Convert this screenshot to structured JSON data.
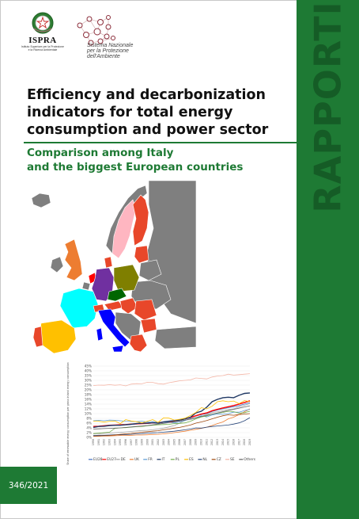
{
  "publisher": {
    "ispra_name": "ISPRA",
    "ispra_sub_line1": "Istituto Superiore per la Protezione",
    "ispra_sub_line2": "e la Ricerca Ambientale",
    "snpa_line1": "Sistema Nazionale",
    "snpa_line2": "per la Protezione",
    "snpa_line3": "dell'Ambiente"
  },
  "series_label": "RAPPORTI",
  "title_lines": [
    "Efficiency and decarbonization",
    "indicators for total energy",
    "consumption and power sector"
  ],
  "subtitle_lines": [
    "Comparison among Italy",
    "and the biggest European countries"
  ],
  "report_number": "346/2021",
  "colors": {
    "brand_green": "#1e7a34",
    "map_grey": "#7f7f7f",
    "italy": "#0000ff",
    "germany": "#7030a0",
    "france": "#00ffff",
    "uk": "#ed7d31",
    "spain": "#ffc000",
    "poland": "#7f7f00",
    "sweden": "#ffb6c1",
    "netherlands": "#ff0000",
    "czech": "#006600",
    "others": "#e8472a"
  },
  "chart_data": {
    "type": "line",
    "ylabel": "Share of renewable energy consumption per gross inland energy consumption",
    "yticks": [
      "0%",
      "2%",
      "4%",
      "6%",
      "8%",
      "10%",
      "12%",
      "14%",
      "16%",
      "18%",
      "20%",
      "25%",
      "30%",
      "35%",
      "40%",
      "45%"
    ],
    "x": [
      1990,
      1991,
      1992,
      1993,
      1994,
      1995,
      1996,
      1997,
      1998,
      1999,
      2000,
      2001,
      2002,
      2003,
      2004,
      2005,
      2006,
      2007,
      2008,
      2009,
      2010,
      2011,
      2012,
      2013,
      2014,
      2015,
      2016,
      2017,
      2018,
      2019
    ],
    "series": [
      {
        "name": "EU28",
        "color": "#4472c4",
        "values": [
          4.5,
          4.6,
          4.8,
          5.0,
          5.1,
          5.2,
          5.3,
          5.5,
          5.6,
          5.7,
          5.8,
          6.0,
          6.1,
          6.3,
          6.5,
          6.8,
          7.2,
          7.7,
          8.3,
          9.0,
          9.6,
          10.0,
          10.9,
          11.5,
          12.0,
          12.5,
          12.9,
          13.4,
          14.0,
          14.6
        ]
      },
      {
        "name": "EU27",
        "color": "#ff0000",
        "values": [
          4.6,
          4.7,
          4.9,
          5.1,
          5.2,
          5.3,
          5.4,
          5.6,
          5.7,
          5.8,
          5.9,
          6.1,
          6.2,
          6.4,
          6.6,
          6.9,
          7.3,
          7.8,
          8.4,
          9.1,
          9.8,
          10.3,
          11.2,
          11.8,
          12.4,
          12.9,
          13.4,
          14.0,
          14.7,
          15.4
        ]
      },
      {
        "name": "DE",
        "color": "#a5a5a5",
        "values": [
          1.5,
          1.6,
          1.7,
          1.8,
          2.0,
          2.1,
          2.3,
          2.5,
          2.7,
          2.9,
          3.0,
          3.2,
          3.5,
          3.9,
          4.4,
          5.0,
          6.0,
          7.2,
          7.5,
          8.1,
          8.9,
          9.6,
          10.5,
          10.8,
          11.2,
          11.8,
          12.0,
          12.8,
          13.5,
          14.2
        ]
      },
      {
        "name": "UK",
        "color": "#ed7d31",
        "values": [
          0.5,
          0.5,
          0.6,
          0.6,
          0.7,
          0.8,
          0.8,
          0.9,
          1.0,
          1.0,
          1.1,
          1.2,
          1.3,
          1.5,
          1.7,
          2.0,
          2.3,
          2.6,
          3.0,
          3.4,
          3.8,
          4.3,
          5.0,
          5.8,
          6.5,
          7.8,
          8.5,
          9.6,
          10.8,
          12.0
        ]
      },
      {
        "name": "FR",
        "color": "#5b9bd5",
        "values": [
          7.0,
          7.2,
          7.0,
          7.3,
          7.2,
          7.0,
          6.8,
          6.7,
          6.6,
          6.8,
          6.5,
          6.7,
          6.2,
          6.3,
          6.4,
          6.1,
          6.5,
          7.1,
          7.9,
          8.3,
          9.1,
          8.6,
          9.4,
          9.9,
          9.7,
          10.0,
          10.6,
          10.6,
          11.3,
          11.8
        ]
      },
      {
        "name": "IT",
        "color": "#1f3864",
        "values": [
          4.2,
          4.6,
          4.7,
          5.0,
          5.1,
          5.1,
          5.3,
          5.5,
          5.8,
          6.0,
          6.0,
          6.2,
          6.0,
          6.5,
          6.8,
          7.0,
          7.3,
          7.8,
          8.5,
          10.3,
          11.0,
          12.7,
          15.0,
          16.0,
          16.7,
          16.9,
          16.7,
          17.7,
          18.5,
          18.7
        ]
      },
      {
        "name": "PL",
        "color": "#70ad47",
        "values": [
          1.6,
          1.8,
          2.0,
          2.2,
          3.8,
          4.0,
          4.1,
          4.3,
          4.5,
          4.6,
          4.9,
          5.1,
          5.3,
          5.4,
          5.5,
          5.8,
          5.9,
          6.1,
          6.8,
          7.8,
          8.6,
          9.0,
          9.8,
          10.2,
          10.5,
          11.0,
          10.8,
          10.2,
          10.4,
          11.0
        ]
      },
      {
        "name": "ES",
        "color": "#ffc000",
        "values": [
          6.8,
          6.8,
          6.4,
          6.8,
          6.9,
          5.8,
          7.5,
          6.9,
          6.6,
          6.1,
          6.8,
          7.5,
          6.3,
          8.2,
          8.1,
          7.3,
          7.6,
          8.1,
          9.2,
          10.5,
          12.5,
          12.0,
          13.1,
          15.0,
          15.4,
          15.0,
          15.3,
          14.2,
          15.5,
          15.0
        ]
      },
      {
        "name": "NL",
        "color": "#264478",
        "values": [
          0.8,
          0.9,
          0.9,
          1.0,
          1.1,
          1.1,
          1.2,
          1.3,
          1.5,
          1.6,
          1.8,
          1.9,
          2.0,
          2.2,
          2.4,
          2.6,
          2.9,
          3.2,
          3.5,
          4.0,
          3.9,
          4.3,
          4.6,
          4.8,
          5.0,
          5.2,
          5.6,
          6.1,
          7.0,
          8.3
        ]
      },
      {
        "name": "CZ",
        "color": "#9e480e",
        "values": [
          0.5,
          0.6,
          0.7,
          0.8,
          1.0,
          1.3,
          1.5,
          1.7,
          2.0,
          2.2,
          2.4,
          2.6,
          2.8,
          3.2,
          3.5,
          3.9,
          4.2,
          4.7,
          5.2,
          6.0,
          6.5,
          7.1,
          7.8,
          8.5,
          9.1,
          9.5,
          9.3,
          9.6,
          9.8,
          10.0
        ]
      },
      {
        "name": "SE",
        "color": "#f4b6a7",
        "values": [
          24.5,
          25.0,
          24.8,
          25.5,
          24.8,
          25.3,
          24.2,
          26.0,
          26.5,
          26.3,
          28.0,
          27.8,
          26.5,
          26.0,
          27.5,
          28.5,
          29.5,
          30.0,
          30.5,
          32.5,
          32.0,
          31.5,
          33.5,
          34.5,
          35.0,
          36.5,
          35.5,
          36.0,
          36.5,
          37.0
        ]
      },
      {
        "name": "Others",
        "color": "#636363",
        "values": [
          3.5,
          3.6,
          3.7,
          3.8,
          3.9,
          4.0,
          4.2,
          4.4,
          4.6,
          4.8,
          5.0,
          5.3,
          5.6,
          5.9,
          6.2,
          6.5,
          6.9,
          7.3,
          7.8,
          8.3,
          8.8,
          9.3,
          9.8,
          10.3,
          10.8,
          11.3,
          11.8,
          12.3,
          12.8,
          13.3
        ]
      }
    ]
  }
}
